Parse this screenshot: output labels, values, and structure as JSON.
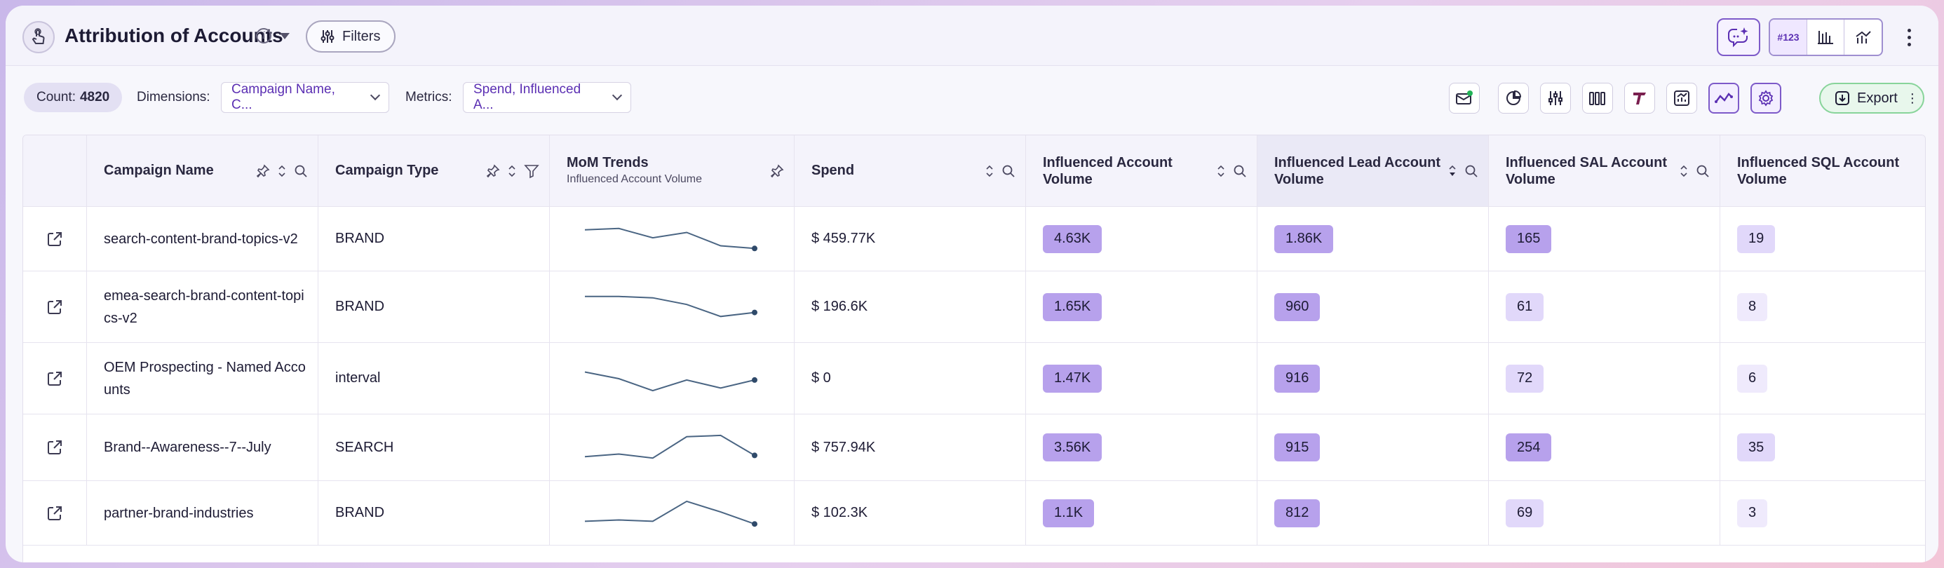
{
  "header": {
    "title": "Attribution of Accounts",
    "filters_label": "Filters",
    "number_toggle_label": "#123"
  },
  "toolbar": {
    "count_label": "Count:",
    "count_value": "4820",
    "dimensions_label": "Dimensions:",
    "dimensions_value": "Campaign Name, C...",
    "metrics_label": "Metrics:",
    "metrics_value": "Spend, Influenced A...",
    "export_label": "Export"
  },
  "colors": {
    "accent": "#7d5ac9",
    "badge_dark": "#b7a1ec",
    "badge_mid": "#cbbdf3",
    "badge_light": "#e1d8fa",
    "badge_pale": "#efeafc",
    "export_green": "#88d49a",
    "sparkline": "#4a6583"
  },
  "table": {
    "columns": [
      {
        "label": "Campaign Name"
      },
      {
        "label": "Campaign Type"
      },
      {
        "label": "MoM Trends",
        "sub": "Influenced Account Volume"
      },
      {
        "label": "Spend"
      },
      {
        "label": "Influenced Account Volume"
      },
      {
        "label": "Influenced Lead Account Volume"
      },
      {
        "label": "Influenced SAL Account Volume"
      },
      {
        "label": "Influenced SQL Account Volume"
      }
    ],
    "rows": [
      {
        "name": "search-content-brand-topics-v2",
        "type": "BRAND",
        "trend": [
          0.85,
          0.9,
          0.55,
          0.75,
          0.25,
          0.15
        ],
        "spend": "$ 459.77K",
        "iav": "4.63K",
        "ilav": "1.86K",
        "isav": "165",
        "isqv": "19"
      },
      {
        "name": "emea-search-brand-content-topics-v2",
        "name_display": "emea-search-brand-content-top\nics-v2",
        "type": "BRAND",
        "trend": [
          0.9,
          0.9,
          0.85,
          0.6,
          0.15,
          0.3
        ],
        "spend": "$ 196.6K",
        "iav": "1.65K",
        "ilav": "960",
        "isav": "61",
        "isqv": "8"
      },
      {
        "name": "OEM Prospecting - Named Accounts",
        "name_display": "OEM Prospecting - Named Acco\nunts",
        "type": "interval",
        "trend": [
          0.75,
          0.5,
          0.05,
          0.45,
          0.15,
          0.45
        ],
        "spend": "$ 0",
        "iav": "1.47K",
        "ilav": "916",
        "isav": "72",
        "isqv": "6"
      },
      {
        "name": "Brand--Awareness--7--July",
        "type": "SEARCH",
        "trend": [
          0.15,
          0.25,
          0.1,
          0.9,
          0.95,
          0.2
        ],
        "spend": "$ 757.94K",
        "iav": "3.56K",
        "ilav": "915",
        "isav": "254",
        "isqv": "35"
      },
      {
        "name": "partner-brand-industries",
        "type": "BRAND",
        "trend": [
          0.2,
          0.25,
          0.2,
          0.95,
          0.55,
          0.1
        ],
        "spend": "$ 102.3K",
        "iav": "1.1K",
        "ilav": "812",
        "isav": "69",
        "isqv": "3"
      }
    ]
  }
}
